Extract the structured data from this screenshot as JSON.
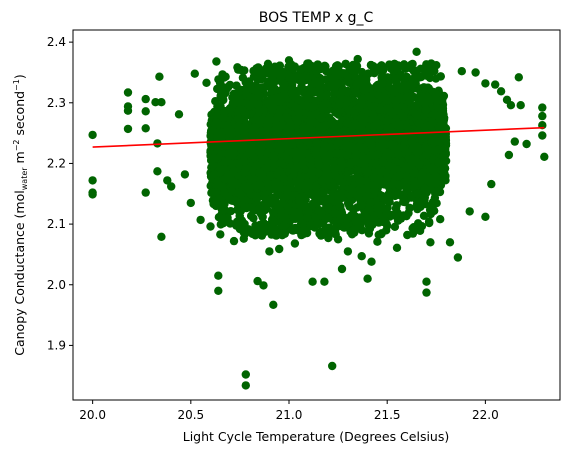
{
  "chart_data": {
    "type": "scatter",
    "title": "BOS TEMP x g_C",
    "xlabel": "Light Cycle Temperature (Degrees Celsius)",
    "ylabel": {
      "prefix": "Canopy Conductance (mol",
      "sub": "water",
      "mid": " m",
      "sup1": "−2",
      "mid2": " second",
      "sup2": "−1",
      "suffix": ")"
    },
    "xlim": [
      19.9,
      22.38
    ],
    "ylim": [
      1.81,
      2.42
    ],
    "xticks": [
      20.0,
      20.5,
      21.0,
      21.5,
      22.0
    ],
    "yticks": [
      1.9,
      2.0,
      2.1,
      2.2,
      2.3,
      2.4
    ],
    "xtick_labels": [
      "20.0",
      "20.5",
      "21.0",
      "21.5",
      "22.0"
    ],
    "ytick_labels": [
      "1.9",
      "2.0",
      "2.1",
      "2.2",
      "2.3",
      "2.4"
    ],
    "grid": false,
    "legend": false,
    "marker_color": "#006400",
    "line_color": "#ff0000",
    "series": [
      {
        "kind": "points",
        "points": [
          [
            20.0,
            2.247
          ],
          [
            20.0,
            2.172
          ],
          [
            20.0,
            2.152
          ],
          [
            20.0,
            2.149
          ],
          [
            20.18,
            2.317
          ],
          [
            20.18,
            2.294
          ],
          [
            20.18,
            2.287
          ],
          [
            20.18,
            2.257
          ],
          [
            20.27,
            2.306
          ],
          [
            20.27,
            2.286
          ],
          [
            20.27,
            2.258
          ],
          [
            20.27,
            2.152
          ],
          [
            20.32,
            2.301
          ],
          [
            20.33,
            2.233
          ],
          [
            20.33,
            2.187
          ],
          [
            20.34,
            2.343
          ],
          [
            20.35,
            2.301
          ],
          [
            20.35,
            2.079
          ],
          [
            20.38,
            2.172
          ],
          [
            20.4,
            2.162
          ],
          [
            20.44,
            2.281
          ],
          [
            20.47,
            2.182
          ],
          [
            20.5,
            2.135
          ],
          [
            20.52,
            2.348
          ],
          [
            20.55,
            2.107
          ],
          [
            20.58,
            2.333
          ],
          [
            20.6,
            2.096
          ],
          [
            20.63,
            2.368
          ],
          [
            20.64,
            2.015
          ],
          [
            20.64,
            1.99
          ],
          [
            20.65,
            2.083
          ],
          [
            20.67,
            2.325
          ],
          [
            20.7,
            2.101
          ],
          [
            20.72,
            2.072
          ],
          [
            20.75,
            2.092
          ],
          [
            20.77,
            2.076
          ],
          [
            20.78,
            1.852
          ],
          [
            20.78,
            1.834
          ],
          [
            20.81,
            2.126
          ],
          [
            20.84,
            2.006
          ],
          [
            20.86,
            2.116
          ],
          [
            20.87,
            1.999
          ],
          [
            20.9,
            2.055
          ],
          [
            20.92,
            1.967
          ],
          [
            20.95,
            2.059
          ],
          [
            20.98,
            2.11
          ],
          [
            21.0,
            2.37
          ],
          [
            21.03,
            2.068
          ],
          [
            21.06,
            2.355
          ],
          [
            21.1,
            2.121
          ],
          [
            21.12,
            2.005
          ],
          [
            21.15,
            2.359
          ],
          [
            21.18,
            2.005
          ],
          [
            21.2,
            2.077
          ],
          [
            21.22,
            1.866
          ],
          [
            21.25,
            2.075
          ],
          [
            21.27,
            2.026
          ],
          [
            21.3,
            2.055
          ],
          [
            21.35,
            2.372
          ],
          [
            21.37,
            2.047
          ],
          [
            21.4,
            2.01
          ],
          [
            21.42,
            2.038
          ],
          [
            21.45,
            2.071
          ],
          [
            21.48,
            2.355
          ],
          [
            21.5,
            2.097
          ],
          [
            21.52,
            2.115
          ],
          [
            21.55,
            2.061
          ],
          [
            21.58,
            2.361
          ],
          [
            21.65,
            2.384
          ],
          [
            21.7,
            2.005
          ],
          [
            21.7,
            1.987
          ],
          [
            21.72,
            2.07
          ],
          [
            21.75,
            2.362
          ],
          [
            21.77,
            2.108
          ],
          [
            21.82,
            2.07
          ],
          [
            21.86,
            2.045
          ],
          [
            21.88,
            2.352
          ],
          [
            21.92,
            2.121
          ],
          [
            21.95,
            2.35
          ],
          [
            22.0,
            2.332
          ],
          [
            22.0,
            2.112
          ],
          [
            22.03,
            2.166
          ],
          [
            22.05,
            2.33
          ],
          [
            22.08,
            2.319
          ],
          [
            22.11,
            2.305
          ],
          [
            22.12,
            2.214
          ],
          [
            22.13,
            2.296
          ],
          [
            22.15,
            2.236
          ],
          [
            22.17,
            2.342
          ],
          [
            22.18,
            2.296
          ],
          [
            22.21,
            2.232
          ],
          [
            22.29,
            2.292
          ],
          [
            22.29,
            2.278
          ],
          [
            22.29,
            2.263
          ],
          [
            22.29,
            2.246
          ],
          [
            22.3,
            2.211
          ]
        ]
      },
      {
        "kind": "dense_cloud",
        "x_center": 21.2,
        "x_spread": 0.6,
        "y_center": 2.226,
        "y_spread": 0.07,
        "count": 5000
      }
    ],
    "fit_line": {
      "x": [
        20.0,
        22.3
      ],
      "y": [
        2.227,
        2.259
      ]
    }
  }
}
